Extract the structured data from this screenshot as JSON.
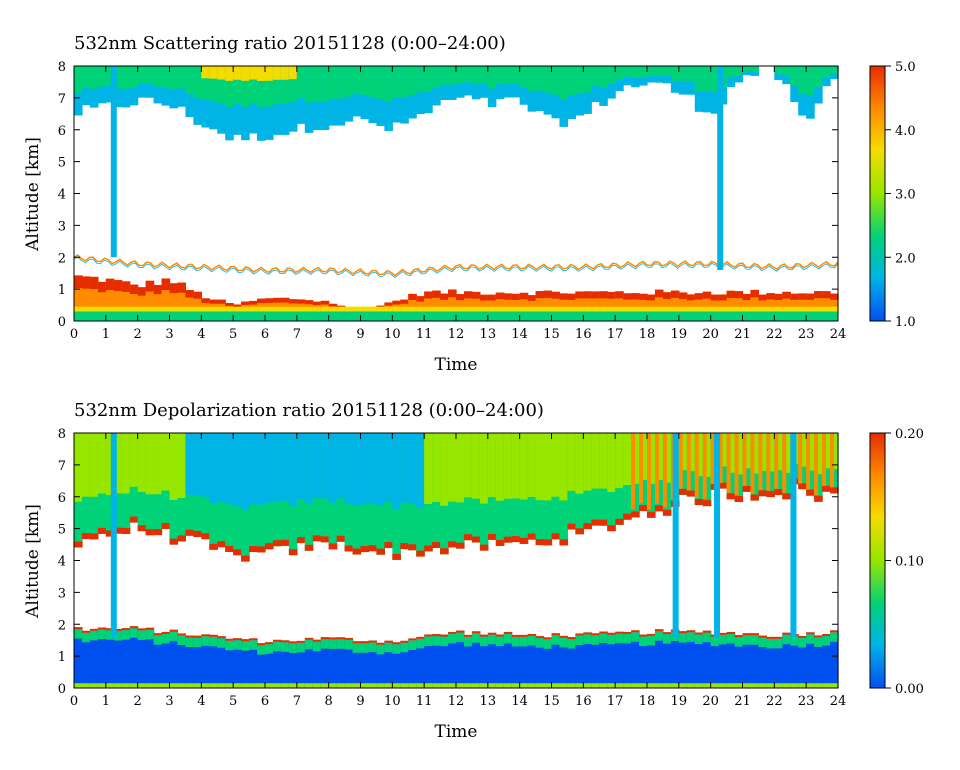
{
  "chart_data": [
    {
      "type": "heatmap",
      "title": "532nm Scattering ratio  20151128 (0:00–24:00)",
      "xlabel": "Time",
      "ylabel": "Altitude [km]",
      "xlim": [
        0,
        24
      ],
      "ylim": [
        0,
        8
      ],
      "x_ticks": [
        "0",
        "1",
        "2",
        "3",
        "4",
        "5",
        "6",
        "7",
        "8",
        "9",
        "10",
        "11",
        "12",
        "13",
        "14",
        "15",
        "16",
        "17",
        "18",
        "19",
        "20",
        "21",
        "22",
        "23",
        "24"
      ],
      "y_ticks": [
        "0",
        "1",
        "2",
        "3",
        "4",
        "5",
        "6",
        "7",
        "8"
      ],
      "colorbar": {
        "min": 1.0,
        "max": 5.0,
        "ticks": [
          "5.0",
          "4.0",
          "3.0",
          "2.0",
          "1.0"
        ],
        "colors": [
          "#0050f0",
          "#00b4e6",
          "#00d278",
          "#96e600",
          "#f5dc00",
          "#ff8c00",
          "#e62d00"
        ]
      },
      "features": {
        "surface_layer_top_km": 0.3,
        "boundary_layer_top_km": [
          [
            0,
            1.4
          ],
          [
            1,
            1.3
          ],
          [
            2,
            1.1
          ],
          [
            3,
            1.3
          ],
          [
            4,
            0.8
          ],
          [
            5,
            0.5
          ],
          [
            6,
            0.7
          ],
          [
            7,
            0.7
          ],
          [
            8,
            0.6
          ],
          [
            9,
            0.3
          ],
          [
            10,
            0.6
          ],
          [
            11,
            0.9
          ],
          [
            12,
            0.9
          ],
          [
            14,
            0.9
          ],
          [
            16,
            0.9
          ],
          [
            18,
            0.9
          ],
          [
            20,
            0.9
          ],
          [
            22,
            0.9
          ],
          [
            24,
            0.9
          ]
        ],
        "aerosol_line_km": [
          [
            0,
            2.0
          ],
          [
            2,
            1.8
          ],
          [
            4,
            1.7
          ],
          [
            6,
            1.6
          ],
          [
            8,
            1.6
          ],
          [
            10,
            1.5
          ],
          [
            12,
            1.7
          ],
          [
            14,
            1.7
          ],
          [
            16,
            1.7
          ],
          [
            18,
            1.8
          ],
          [
            20,
            1.8
          ],
          [
            22,
            1.7
          ],
          [
            24,
            1.8
          ]
        ],
        "cloud_base_km": [
          [
            0,
            6.5
          ],
          [
            1,
            6.7
          ],
          [
            2,
            6.9
          ],
          [
            3,
            6.8
          ],
          [
            4,
            6.2
          ],
          [
            5,
            5.7
          ],
          [
            6,
            5.8
          ],
          [
            7,
            6.0
          ],
          [
            8,
            6.2
          ],
          [
            9,
            6.3
          ],
          [
            10,
            6.0
          ],
          [
            11,
            6.5
          ],
          [
            12,
            7.0
          ],
          [
            13,
            6.8
          ],
          [
            14,
            6.9
          ],
          [
            15,
            6.2
          ],
          [
            16,
            6.4
          ],
          [
            17,
            7.2
          ],
          [
            18,
            7.5
          ],
          [
            19,
            7.2
          ],
          [
            20,
            6.5
          ],
          [
            21,
            7.7
          ],
          [
            22,
            7.9
          ],
          [
            23,
            6.1
          ],
          [
            24,
            8.0
          ]
        ]
      }
    },
    {
      "type": "heatmap",
      "title": "532nm Depolarization ratio  20151128 (0:00–24:00)",
      "xlabel": "Time",
      "ylabel": "Altitude [km]",
      "xlim": [
        0,
        24
      ],
      "ylim": [
        0,
        8
      ],
      "x_ticks": [
        "0",
        "1",
        "2",
        "3",
        "4",
        "5",
        "6",
        "7",
        "8",
        "9",
        "10",
        "11",
        "12",
        "13",
        "14",
        "15",
        "16",
        "17",
        "18",
        "19",
        "20",
        "21",
        "22",
        "23",
        "24"
      ],
      "y_ticks": [
        "0",
        "1",
        "2",
        "3",
        "4",
        "5",
        "6",
        "7",
        "8"
      ],
      "colorbar": {
        "min": 0.0,
        "max": 0.2,
        "ticks": [
          "0.20",
          "0.10",
          "0.00"
        ],
        "colors": [
          "#0050f0",
          "#00b4e6",
          "#00d278",
          "#96e600",
          "#f5dc00",
          "#ff8c00",
          "#e62d00"
        ]
      },
      "features": {
        "low_layer_top_km": [
          [
            0,
            1.8
          ],
          [
            2,
            1.8
          ],
          [
            4,
            1.6
          ],
          [
            6,
            1.4
          ],
          [
            8,
            1.5
          ],
          [
            10,
            1.4
          ],
          [
            12,
            1.7
          ],
          [
            14,
            1.6
          ],
          [
            16,
            1.6
          ],
          [
            18,
            1.7
          ],
          [
            20,
            1.7
          ],
          [
            22,
            1.6
          ],
          [
            24,
            1.7
          ]
        ],
        "upper_layer_base_km": [
          [
            0,
            4.6
          ],
          [
            2,
            5.0
          ],
          [
            4,
            4.5
          ],
          [
            5,
            4.1
          ],
          [
            6,
            4.2
          ],
          [
            8,
            4.5
          ],
          [
            10,
            4.2
          ],
          [
            12,
            4.4
          ],
          [
            14,
            4.5
          ],
          [
            16,
            4.8
          ],
          [
            18,
            5.5
          ],
          [
            20,
            6.0
          ],
          [
            22,
            6.2
          ],
          [
            24,
            6.0
          ]
        ]
      }
    }
  ]
}
